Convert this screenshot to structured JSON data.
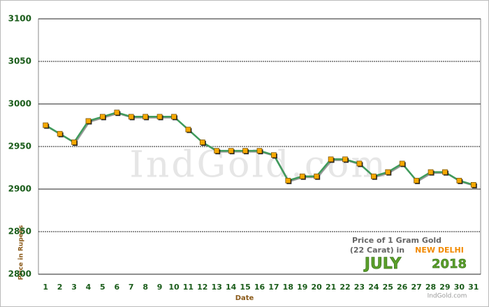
{
  "chart_data": {
    "type": "line",
    "categories": [
      "1",
      "2",
      "3",
      "4",
      "5",
      "6",
      "7",
      "8",
      "9",
      "10",
      "11",
      "12",
      "13",
      "14",
      "15",
      "16",
      "17",
      "18",
      "19",
      "20",
      "21",
      "22",
      "23",
      "24",
      "25",
      "26",
      "27",
      "28",
      "29",
      "30",
      "31"
    ],
    "series": [
      {
        "name": "Price of 1 Gram Gold (22 Carat)",
        "color": "#3f9b5c",
        "values": [
          2975,
          2965,
          2955,
          2980,
          2985,
          2990,
          2985,
          2985,
          2985,
          2985,
          2970,
          2955,
          2945,
          2945,
          2945,
          2945,
          2940,
          2910,
          2915,
          2915,
          2935,
          2935,
          2930,
          2915,
          2920,
          2930,
          2910,
          2920,
          2920,
          2910,
          2905
        ]
      }
    ],
    "marker_color": "#f5a800",
    "ylim": [
      2800,
      3100
    ],
    "yticks": [
      2800,
      2850,
      2900,
      2950,
      3000,
      3050,
      3100
    ],
    "grid": true,
    "x_label": "Date",
    "y_label": "Price in Rupees",
    "watermark": "IndGold.com",
    "annotation": {
      "line1": "Price of 1 Gram Gold",
      "line2": "(22 Carat) in",
      "city": "NEW DELHI",
      "month": "JULY",
      "year": "2018",
      "site": "IndGold.com"
    }
  }
}
